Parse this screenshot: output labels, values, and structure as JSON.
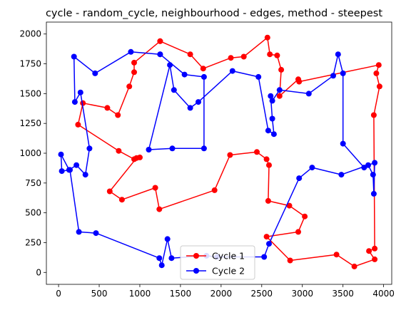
{
  "chart_data": {
    "type": "line",
    "title": "cycle - random_cycle, neighbourhood - edges, method - steepest",
    "xlabel": "",
    "ylabel": "",
    "xlim": [
      -150,
      4100
    ],
    "ylim": [
      -100,
      2100
    ],
    "xticks": [
      0,
      500,
      1000,
      1500,
      2000,
      2500,
      3000,
      3500,
      4000
    ],
    "yticks": [
      0,
      250,
      500,
      750,
      1000,
      1250,
      1500,
      1750,
      2000
    ],
    "xtick_labels": [
      "0",
      "500",
      "1000",
      "1500",
      "2000",
      "2500",
      "3000",
      "3500",
      "4000"
    ],
    "ytick_labels": [
      "0",
      "250",
      "500",
      "750",
      "1000",
      "1250",
      "1500",
      "1750",
      "2000"
    ],
    "grid": false,
    "legend_position": "bottom-center",
    "markers": "circle",
    "series": [
      {
        "name": "Cycle 1",
        "color": "#ff0000",
        "x": [
          1250,
          1620,
          1780,
          2120,
          2280,
          2570,
          2600,
          2690,
          2740,
          2720,
          2950,
          2960,
          3940,
          3910,
          3950,
          3880,
          3890,
          3820,
          3890,
          3640,
          3420,
          2850,
          2560,
          2950,
          3030,
          2840,
          2580,
          2590,
          2560,
          2440,
          2110,
          1920,
          1240,
          1190,
          780,
          630,
          960,
          1000,
          930,
          740,
          240,
          300,
          600,
          730,
          870,
          930,
          930,
          1250
        ],
        "y": [
          1940,
          1830,
          1710,
          1800,
          1810,
          1970,
          1830,
          1820,
          1700,
          1480,
          1620,
          1600,
          1740,
          1670,
          1560,
          1320,
          200,
          180,
          110,
          50,
          150,
          100,
          300,
          340,
          470,
          560,
          600,
          900,
          950,
          1010,
          985,
          690,
          530,
          710,
          610,
          680,
          960,
          965,
          950,
          1020,
          1240,
          1420,
          1380,
          1320,
          1560,
          1680,
          1760,
          1940
        ]
      },
      {
        "name": "Cycle 2",
        "color": "#0000ff",
        "x": [
          1250,
          890,
          450,
          190,
          200,
          270,
          380,
          330,
          220,
          130,
          30,
          40,
          140,
          250,
          460,
          1240,
          1270,
          1340,
          1390,
          1820,
          1950,
          2530,
          2590,
          2960,
          3120,
          3480,
          3890,
          3880,
          3870,
          3810,
          3760,
          3500,
          3500,
          3440,
          3380,
          3080,
          2720,
          2630,
          2610,
          2630,
          2650,
          2580,
          2460,
          2140,
          1720,
          1620,
          1420,
          1370,
          1110,
          1400,
          1790,
          1790,
          1550,
          1250
        ],
        "y": [
          1830,
          1850,
          1670,
          1810,
          1430,
          1510,
          1040,
          820,
          900,
          860,
          990,
          850,
          860,
          340,
          330,
          120,
          60,
          280,
          120,
          140,
          130,
          130,
          240,
          790,
          880,
          820,
          920,
          660,
          820,
          900,
          880,
          1080,
          1670,
          1830,
          1650,
          1500,
          1530,
          1440,
          1480,
          1290,
          1160,
          1190,
          1640,
          1690,
          1430,
          1380,
          1530,
          1740,
          1030,
          1040,
          1040,
          1640,
          1660,
          1830
        ]
      }
    ]
  }
}
